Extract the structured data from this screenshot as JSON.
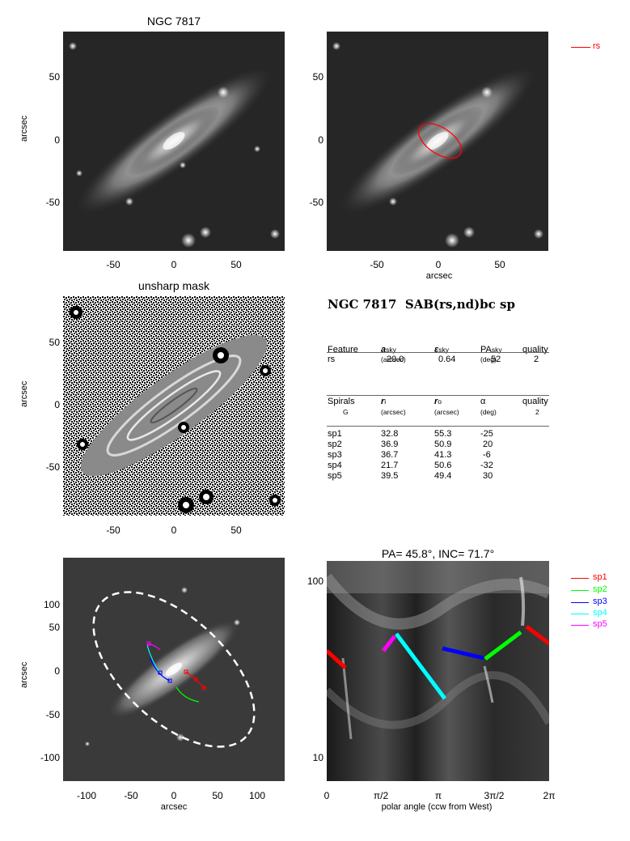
{
  "galaxy": "NGC 7817",
  "panel1": {
    "title": "NGC 7817",
    "ylabel": "arcsec",
    "yticks": [
      "50",
      "0",
      "-50"
    ],
    "xticks": [
      "-50",
      "0",
      "50"
    ]
  },
  "panel2": {
    "ylabel": "",
    "yticks": [
      "50",
      "0",
      "-50"
    ],
    "xticks": [
      "-50",
      "0",
      "50"
    ],
    "xlabel": "arcsec",
    "legend": {
      "label": "rs",
      "color": "#ff0000"
    }
  },
  "panel3": {
    "title": "unsharp mask",
    "ylabel": "arcsec",
    "yticks": [
      "50",
      "0",
      "-50"
    ],
    "xticks": [
      "-50",
      "0",
      "50"
    ]
  },
  "table": {
    "heading": "NGC 7817  SAB(rs,nd)bc sp",
    "feature_header": {
      "c1": "Feature",
      "c2": "a",
      "c2sub": "sky",
      "c2unit": "(arcsec)",
      "c3": "ε",
      "c3sub": "sky",
      "c4": "PA",
      "c4sub": "sky",
      "c4unit": "(deg)",
      "c5": "quality"
    },
    "features": [
      {
        "name": "rs",
        "a": "20.0",
        "eps": "0.64",
        "pa": "52",
        "quality": "2"
      }
    ],
    "spiral_header": {
      "c1": "Spirals",
      "c1b": "G",
      "c2": "r",
      "c2sub": "i",
      "c2unit": "(arcsec)",
      "c3": "r",
      "c3sub": "o",
      "c3unit": "(arcsec)",
      "c4": "α",
      "c4unit": "(deg)",
      "c5": "quality",
      "c5b": "2"
    },
    "spirals": [
      {
        "name": "sp1",
        "ri": "32.8",
        "ro": "55.3",
        "alpha": "-25"
      },
      {
        "name": "sp2",
        "ri": "36.9",
        "ro": "50.9",
        "alpha": "20"
      },
      {
        "name": "sp3",
        "ri": "36.7",
        "ro": "41.3",
        "alpha": "-6"
      },
      {
        "name": "sp4",
        "ri": "21.7",
        "ro": "50.6",
        "alpha": "-32"
      },
      {
        "name": "sp5",
        "ri": "39.5",
        "ro": "49.4",
        "alpha": "30"
      }
    ]
  },
  "panel5": {
    "ylabel": "arcsec",
    "xlabel": "arcsec",
    "yticks": [
      "100",
      "50",
      "0",
      "-50",
      "-100"
    ],
    "xticks": [
      "-100",
      "-50",
      "0",
      "50",
      "100"
    ]
  },
  "panel6": {
    "title": "PA=  45.8°, INC=  71.7°",
    "xlabel": "polar angle (ccw from West)",
    "xticks": [
      "0",
      "π/2",
      "π",
      "3π/2",
      "2π"
    ],
    "yticks": [
      "100",
      "10"
    ],
    "legend": [
      {
        "label": "sp1",
        "color": "#ff0000"
      },
      {
        "label": "sp2",
        "color": "#00ff00"
      },
      {
        "label": "sp3",
        "color": "#0000ff"
      },
      {
        "label": "sp4",
        "color": "#00ffff"
      },
      {
        "label": "sp5",
        "color": "#ff00ff"
      }
    ]
  }
}
